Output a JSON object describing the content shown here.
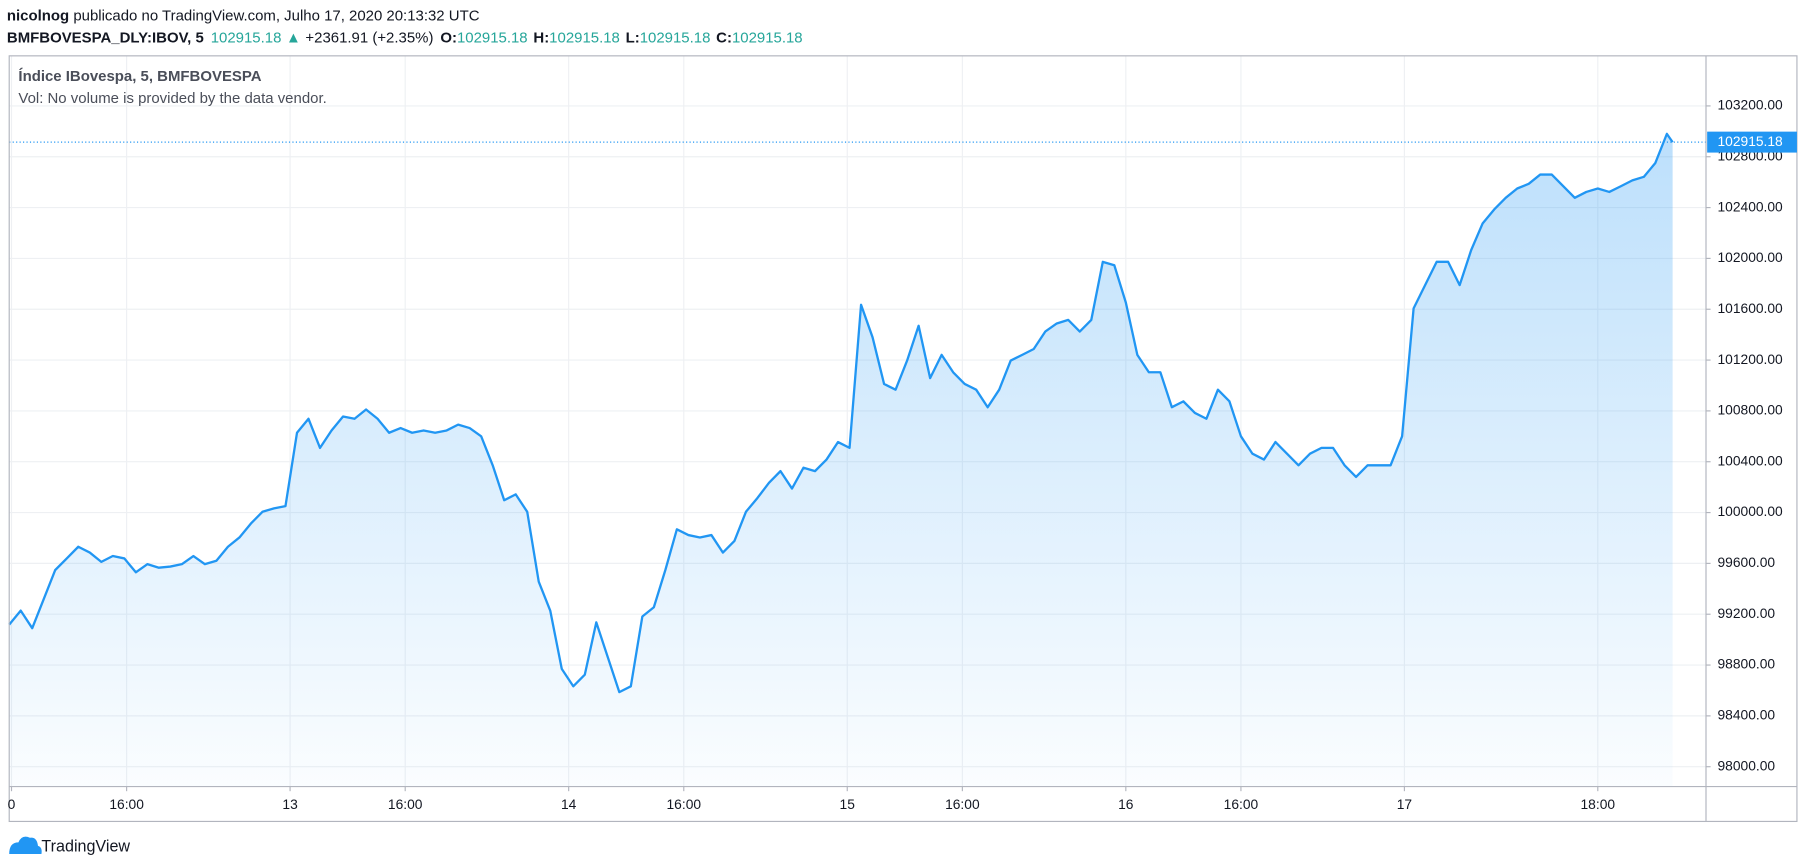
{
  "header": {
    "author": "nicolnog",
    "published": " publicado no TradingView.com, Julho 17, 2020 20:13:32 UTC",
    "symbol": "BMFBOVESPA_DLY:IBOV, 5",
    "last": "102915.18",
    "change": "▲",
    "change_text": "+2361.91 (+2.35%)",
    "ohlc": [
      {
        "label": "O:",
        "value": "102915.18"
      },
      {
        "label": "H:",
        "value": "102915.18"
      },
      {
        "label": "L:",
        "value": "102915.18"
      },
      {
        "label": "C:",
        "value": "102915.18"
      }
    ]
  },
  "footer": {
    "brand": "TradingView"
  },
  "chart_data": {
    "type": "area",
    "title": "Índice IBovespa, 5, BMFBOVESPA",
    "subtitle": "Vol: No volume is provided by the data vendor.",
    "color": "#2196f3",
    "grid": true,
    "x": [
      0,
      1,
      2,
      3,
      4,
      5,
      6,
      7,
      8,
      9,
      10,
      11,
      12,
      13,
      14,
      15,
      16,
      17,
      18,
      19,
      20,
      21,
      22,
      23,
      24,
      25,
      26,
      27,
      28,
      29,
      30,
      31,
      32,
      33,
      34,
      35,
      36,
      37,
      38,
      39,
      40,
      41,
      42,
      43,
      44,
      45,
      46,
      47,
      48,
      49,
      50,
      51,
      52,
      53,
      54,
      55,
      56,
      57,
      58,
      59,
      60,
      61,
      62,
      63,
      64,
      65,
      66,
      67,
      68,
      69,
      70,
      71,
      72,
      73,
      74,
      75,
      76,
      77,
      78,
      79,
      80,
      81,
      82,
      83,
      84,
      85,
      86,
      87,
      88,
      89,
      90,
      91,
      92,
      93,
      94,
      95,
      96,
      97,
      98,
      99,
      100,
      101,
      102,
      103,
      104,
      105,
      106,
      107,
      108,
      109,
      110,
      111,
      112,
      113,
      114,
      115,
      116,
      117,
      118,
      119,
      120,
      121,
      122,
      123,
      124,
      125,
      126,
      127,
      128,
      129,
      130,
      131,
      132,
      133,
      134,
      135,
      136,
      137,
      138,
      139,
      140,
      141,
      142,
      143,
      144,
      144.5
    ],
    "values": [
      99118,
      99228,
      99090,
      99319,
      99548,
      99639,
      99731,
      99685,
      99612,
      99658,
      99639,
      99530,
      99594,
      99566,
      99575,
      99594,
      99658,
      99594,
      99621,
      99731,
      99804,
      99914,
      100006,
      100033,
      100051,
      100628,
      100738,
      100509,
      100646,
      100756,
      100738,
      100811,
      100738,
      100628,
      100665,
      100628,
      100646,
      100628,
      100646,
      100692,
      100665,
      100600,
      100372,
      100097,
      100143,
      100006,
      99456,
      99228,
      98770,
      98633,
      98724,
      99136,
      98861,
      98587,
      98633,
      99182,
      99255,
      99548,
      99868,
      99823,
      99804,
      99823,
      99685,
      99777,
      100006,
      100115,
      100234,
      100326,
      100189,
      100353,
      100326,
      100417,
      100555,
      100509,
      101635,
      101379,
      101012,
      100967,
      101196,
      101470,
      101058,
      101241,
      101104,
      101012,
      100967,
      100829,
      100967,
      101196,
      101241,
      101287,
      101424,
      101488,
      101516,
      101424,
      101516,
      101973,
      101946,
      101653,
      101241,
      101104,
      101104,
      100829,
      100875,
      100784,
      100738,
      100967,
      100875,
      100600,
      100463,
      100417,
      100555,
      100463,
      100372,
      100463,
      100509,
      100509,
      100372,
      100280,
      100372,
      100372,
      100372,
      100600,
      101607,
      101790,
      101973,
      101973,
      101790,
      102065,
      102276,
      102385,
      102477,
      102550,
      102587,
      102660,
      102660,
      102568,
      102477,
      102523,
      102550,
      102523,
      102568,
      102614,
      102642,
      102751,
      102980,
      102915.18
    ],
    "price_line": 102915.18,
    "xlim": [
      0,
      147.4
    ],
    "xticks": [
      {
        "value": 0.2,
        "label": "0"
      },
      {
        "value": 10.2,
        "label": "16:00"
      },
      {
        "value": 24.4,
        "label": "13"
      },
      {
        "value": 34.4,
        "label": "16:00"
      },
      {
        "value": 48.6,
        "label": "14"
      },
      {
        "value": 58.6,
        "label": "16:00"
      },
      {
        "value": 72.8,
        "label": "15"
      },
      {
        "value": 82.8,
        "label": "16:00"
      },
      {
        "value": 97,
        "label": "16"
      },
      {
        "value": 107,
        "label": "16:00"
      },
      {
        "value": 121.2,
        "label": "17"
      },
      {
        "value": 138,
        "label": "18:00"
      }
    ],
    "ylim": [
      97844,
      103594
    ],
    "yticks": [
      {
        "value": 98000,
        "label": "98000.00"
      },
      {
        "value": 98400,
        "label": "98400.00"
      },
      {
        "value": 98800,
        "label": "98800.00"
      },
      {
        "value": 99200,
        "label": "99200.00"
      },
      {
        "value": 99600,
        "label": "99600.00"
      },
      {
        "value": 100000,
        "label": "100000.00"
      },
      {
        "value": 100400,
        "label": "100400.00"
      },
      {
        "value": 100800,
        "label": "100800.00"
      },
      {
        "value": 101200,
        "label": "101200.00"
      },
      {
        "value": 101600,
        "label": "101600.00"
      },
      {
        "value": 102000,
        "label": "102000.00"
      },
      {
        "value": 102400,
        "label": "102400.00"
      },
      {
        "value": 102800,
        "label": "102800.00"
      },
      {
        "value": 103200,
        "label": "103200.00"
      }
    ]
  }
}
